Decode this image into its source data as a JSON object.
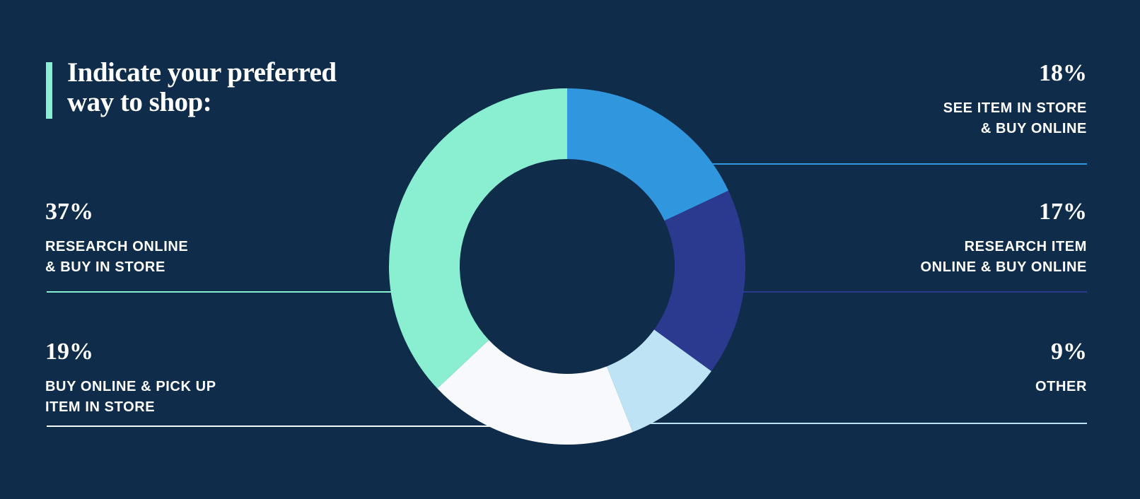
{
  "chart_data": {
    "type": "donut",
    "title": "Indicate your preferred\nway to shop:",
    "categories": [
      "SEE ITEM IN STORE\n& BUY ONLINE",
      "RESEARCH ITEM\nONLINE & BUY ONLINE",
      "OTHER",
      "BUY ONLINE & PICK UP\nITEM IN STORE",
      "RESEARCH ONLINE\n& BUY IN STORE"
    ],
    "values": [
      18,
      17,
      9,
      19,
      37
    ],
    "value_labels": [
      "18%",
      "17%",
      "9%",
      "19%",
      "37%"
    ],
    "colors": [
      "#3096de",
      "#2b3a8f",
      "#bde3f5",
      "#f8f9fc",
      "#8aeed0"
    ]
  }
}
